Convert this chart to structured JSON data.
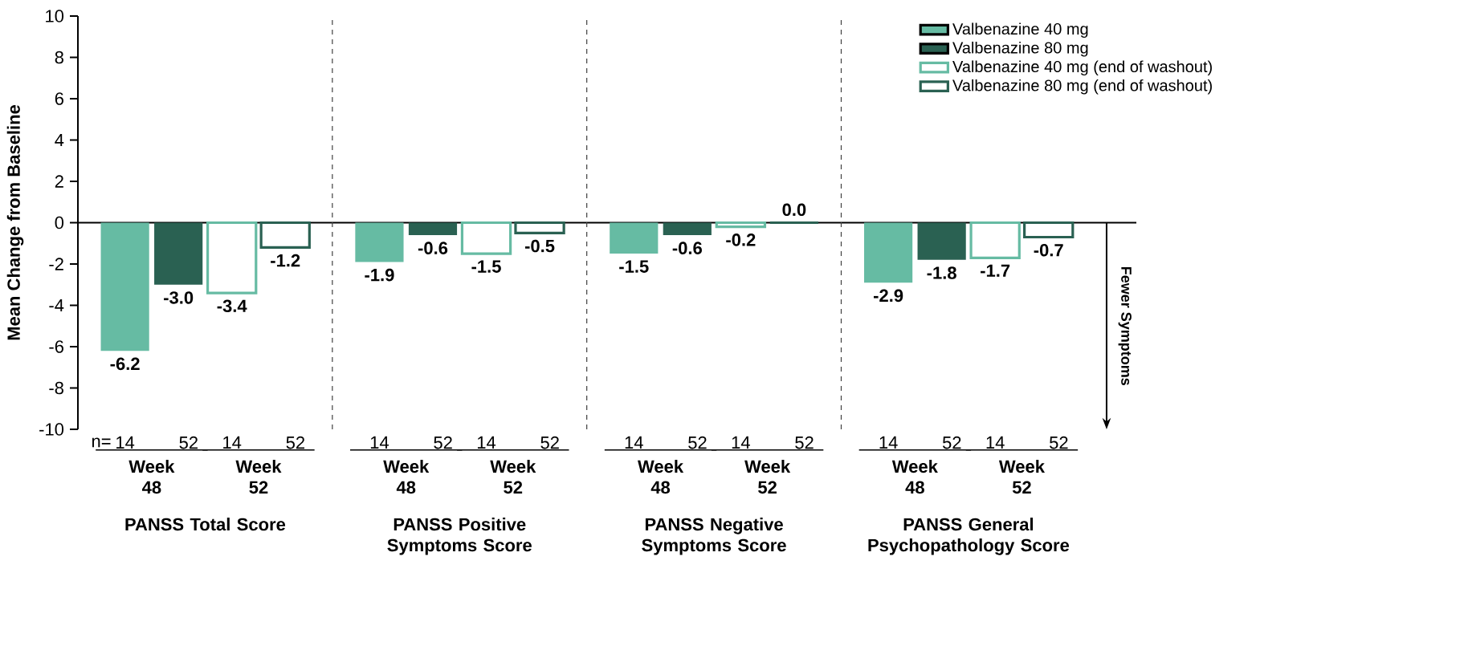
{
  "chart_data": {
    "type": "bar",
    "ylabel": "Mean Change from Baseline",
    "categories": [
      "PANSS Total Score",
      "PANSS Positive Symptoms Score",
      "PANSS Negative Symptoms Score",
      "PANSS General Psychopathology Score"
    ],
    "series": [
      {
        "name": "Valbenazine 40 mg",
        "color": "#66bba3",
        "values": [
          -6.2,
          -1.9,
          -1.5,
          -2.9
        ],
        "value_labels": [
          "-6.2",
          "-1.9",
          "-1.5",
          "-2.9"
        ]
      },
      {
        "name": "Valbenazine 80 mg",
        "color": "#2a6152",
        "values": [
          -3.0,
          -0.6,
          -0.6,
          -1.8
        ],
        "value_labels": [
          "-3.0",
          "-0.6",
          "-0.6",
          "-1.8"
        ]
      },
      {
        "name": "Valbenazine 40 mg (end of washout)",
        "color": "#66bba3",
        "line_style": "solid",
        "values": [
          -3.4,
          -1.5,
          -0.2,
          -1.7
        ],
        "value_labels": [
          "-3.4",
          "-1.5",
          "-0.2",
          "-1.7"
        ]
      },
      {
        "name": "Valbenazine 80 mg (end of washout)",
        "color": "#2a6152",
        "line_style": "solid",
        "values": [
          -1.2,
          -0.5,
          0.0,
          -0.7
        ],
        "value_labels": [
          "-1.2",
          "-0.5",
          "0.0",
          "-0.7"
        ]
      }
    ],
    "ylim": [
      -10,
      10
    ],
    "yticks": [
      -10,
      -8,
      -6,
      -4,
      -2,
      0,
      2,
      4,
      6,
      8,
      10
    ],
    "legend": "top right",
    "annotations": [
      "n=",
      "14",
      "52",
      "14",
      "52",
      "14",
      "52",
      "14",
      "52",
      "14",
      "52",
      "14",
      "52",
      "14",
      "52",
      "14",
      "52",
      "Week 48",
      "Week 52",
      "Week 48",
      "Week 52",
      "Week 48",
      "Week 52",
      "Week 48",
      "Week 52",
      "Fewer Symptoms"
    ]
  }
}
